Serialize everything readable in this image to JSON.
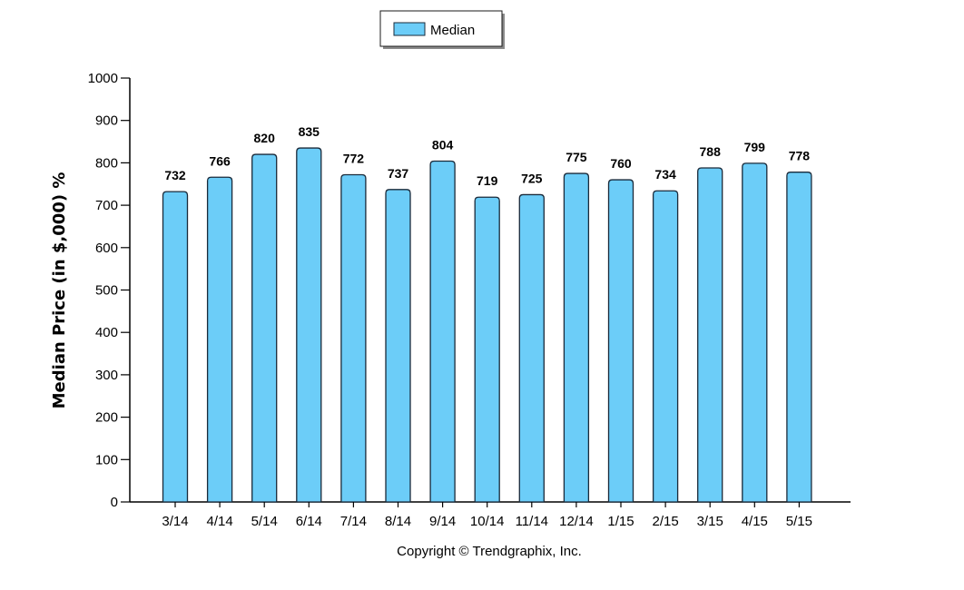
{
  "chart_data": {
    "type": "bar",
    "categories": [
      "3/14",
      "4/14",
      "5/14",
      "6/14",
      "7/14",
      "8/14",
      "9/14",
      "10/14",
      "11/14",
      "12/14",
      "1/15",
      "2/15",
      "3/15",
      "4/15",
      "5/15"
    ],
    "series": [
      {
        "name": "Median",
        "values": [
          732,
          766,
          820,
          835,
          772,
          737,
          804,
          719,
          725,
          775,
          760,
          734,
          788,
          799,
          778
        ]
      }
    ],
    "title": "",
    "xlabel": "",
    "ylabel": "Median Price (in $,000) %",
    "ylim": [
      0,
      1000
    ],
    "yticks": [
      0,
      100,
      200,
      300,
      400,
      500,
      600,
      700,
      800,
      900,
      1000
    ],
    "grid": false,
    "legend_position": "top-center",
    "bar_color": "#6ccdf8",
    "bar_stroke": "#1a2a3a"
  },
  "footer": {
    "copyright": "Copyright © Trendgraphix, Inc."
  }
}
